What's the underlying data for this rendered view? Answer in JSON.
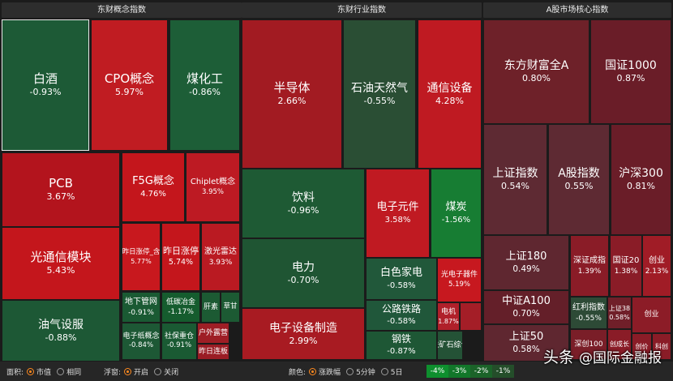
{
  "chart_data": {
    "type": "heatmap",
    "panels": [
      {
        "name": "东财概念指数",
        "tiles": [
          {
            "name": "白酒",
            "value": "-0.93%"
          },
          {
            "name": "CPO概念",
            "value": "5.97%"
          },
          {
            "name": "煤化工",
            "value": "-0.86%"
          },
          {
            "name": "PCB",
            "value": "3.67%"
          },
          {
            "name": "F5G概念",
            "value": "4.76%"
          },
          {
            "name": "Chiplet概念",
            "value": "3.95%"
          },
          {
            "name": "光通信模块",
            "value": "5.43%"
          },
          {
            "name": "昨日涨停_含",
            "value": "5.77%"
          },
          {
            "name": "昨日涨停",
            "value": "5.74%"
          },
          {
            "name": "激光雷达",
            "value": "3.93%"
          },
          {
            "name": "油气设服",
            "value": "-0.88%"
          },
          {
            "name": "地下管网",
            "value": "-0.91%"
          },
          {
            "name": "低碳冶金",
            "value": "-1.17%"
          },
          {
            "name": "肝素",
            "value": ""
          },
          {
            "name": "草甘",
            "value": ""
          },
          {
            "name": "电子纸概念",
            "value": "-0.84%"
          },
          {
            "name": "社保重仓",
            "value": "-0.91%"
          },
          {
            "name": "户外露营",
            "value": ""
          },
          {
            "name": "昨日连板",
            "value": ""
          }
        ]
      },
      {
        "name": "东财行业指数",
        "tiles": [
          {
            "name": "半导体",
            "value": "2.66%"
          },
          {
            "name": "石油天然气",
            "value": "-0.55%"
          },
          {
            "name": "通信设备",
            "value": "4.28%"
          },
          {
            "name": "饮料",
            "value": "-0.96%"
          },
          {
            "name": "电子元件",
            "value": "3.58%"
          },
          {
            "name": "煤炭",
            "value": "-1.56%"
          },
          {
            "name": "电力",
            "value": "-0.70%"
          },
          {
            "name": "白色家电",
            "value": "-0.58%"
          },
          {
            "name": "光电子器件",
            "value": "5.19%"
          },
          {
            "name": "电子设备制造",
            "value": "2.99%"
          },
          {
            "name": "公路铁路",
            "value": "-0.58%"
          },
          {
            "name": "电机",
            "value": "1.87%"
          },
          {
            "name": "",
            "value": ""
          },
          {
            "name": "钢铁",
            "value": "-0.87%"
          },
          {
            "name": "铁矿石综合",
            "value": ""
          }
        ]
      },
      {
        "name": "A股市场核心指数",
        "tiles": [
          {
            "name": "东方财富全A",
            "value": "0.80%"
          },
          {
            "name": "国证1000",
            "value": "0.87%"
          },
          {
            "name": "上证指数",
            "value": "0.54%"
          },
          {
            "name": "A股指数",
            "value": "0.55%"
          },
          {
            "name": "沪深300",
            "value": "0.81%"
          },
          {
            "name": "上证180",
            "value": "0.49%"
          },
          {
            "name": "深证成指",
            "value": "1.39%"
          },
          {
            "name": "国证20",
            "value": "1.38%"
          },
          {
            "name": "创业",
            "value": "2.13%"
          },
          {
            "name": "中证A100",
            "value": "0.70%"
          },
          {
            "name": "红利指数",
            "value": "-0.55%"
          },
          {
            "name": "上证38",
            "value": "0.58%"
          },
          {
            "name": "创业",
            "value": ""
          },
          {
            "name": "上证50",
            "value": "0.58%"
          },
          {
            "name": "深创100",
            "value": ""
          },
          {
            "name": "创成长",
            "value": ""
          },
          {
            "name": "创价",
            "value": ""
          },
          {
            "name": "科创",
            "value": ""
          }
        ]
      }
    ]
  },
  "controls": {
    "area_label": "面积:",
    "area_options": [
      "市值",
      "相同"
    ],
    "area_selected": 0,
    "float_label": "浮窗:",
    "float_options": [
      "开启",
      "关闭"
    ],
    "float_selected": 0,
    "color_label": "颜色:",
    "color_options": [
      "涨跌幅",
      "5分钟",
      "5日"
    ],
    "color_selected": 0,
    "legend": [
      "-4%",
      "-3%",
      "-2%",
      "-1%"
    ],
    "legend_colors": [
      "#0e8f2e",
      "#12772a",
      "#1b6329",
      "#244e2a"
    ]
  },
  "watermark": {
    "prefix": "头条",
    "text": "@国际金融报"
  },
  "colors": {
    "up_strong": "#c4161c",
    "down": "#1f5a34",
    "index_up": "#6b1d26"
  }
}
